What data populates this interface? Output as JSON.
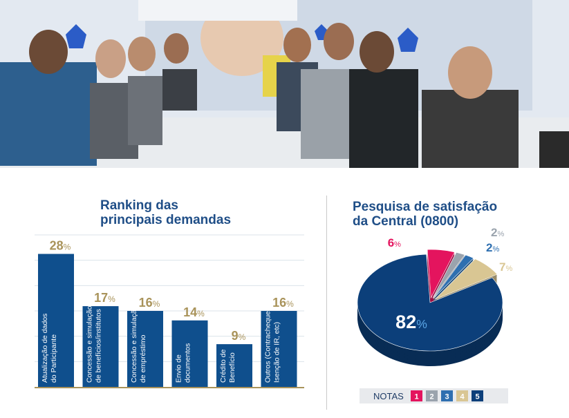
{
  "chart_data": [
    {
      "type": "bar",
      "title_lines": [
        "Ranking das",
        "principais demandas"
      ],
      "categories": [
        [
          "Atualização de dados",
          "do Participante"
        ],
        [
          "Concessão e simulação",
          "de benefícios/institutos"
        ],
        [
          "Concessão e simulação",
          "de empréstimo"
        ],
        [
          "Envio de",
          "documentos"
        ],
        [
          "Crédito de",
          "Benefício"
        ],
        [
          "Outros (Contracheque,",
          "Isenção de IR, etc)"
        ]
      ],
      "values": [
        28,
        17,
        16,
        14,
        9,
        16
      ],
      "value_suffix": "%",
      "ylim": [
        0,
        32
      ],
      "grid": true,
      "colors": {
        "bar": "#0f4f8d",
        "value": "#a9935a",
        "grid": "#dbe2ea",
        "baseline": "#a9935a"
      }
    },
    {
      "type": "pie",
      "title_lines": [
        "Pesquisa de satisfação",
        "da Central (0800)"
      ],
      "slices": [
        {
          "nota": "1",
          "value": 6,
          "color": "#e4145e"
        },
        {
          "nota": "2",
          "value": 2,
          "color": "#9aa3ad"
        },
        {
          "nota": "3",
          "value": 2,
          "color": "#2e6fb0"
        },
        {
          "nota": "4",
          "value": 7,
          "color": "#d9c693"
        },
        {
          "nota": "5",
          "value": 82,
          "color": "#0c3f7a"
        }
      ],
      "value_suffix": "%",
      "legend": {
        "title": "NOTAS",
        "placement": "bottom"
      }
    }
  ]
}
